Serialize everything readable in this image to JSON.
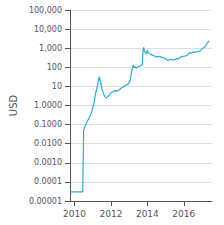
{
  "chart_data": {
    "type": "line",
    "ylabel": "USD",
    "log": "y",
    "grid": "y",
    "color": "#29abe2",
    "xlim": [
      2009.75,
      2017.55
    ],
    "xticks": [
      2010,
      2012,
      2014,
      2016
    ],
    "ylim": [
      1e-05,
      100000
    ],
    "yticks": [
      1e-05,
      0.0001,
      {
        "value": 0.001,
        "label": "0.0010"
      },
      {
        "value": 0.01,
        "label": "0.0100"
      },
      {
        "value": 0.1,
        "label": "0.1000"
      },
      {
        "value": 1.0,
        "label": "1.0000"
      },
      10,
      100,
      {
        "value": 1000,
        "label": "1,000"
      },
      {
        "value": 10000,
        "label": "10,000"
      },
      {
        "value": 100000,
        "label": "100,000"
      }
    ],
    "x": [
      2009.75,
      2009.9,
      2010.0,
      2010.45,
      2010.5,
      2010.55,
      2010.62,
      2010.7,
      2010.78,
      2010.85,
      2010.92,
      2011.0,
      2011.08,
      2011.15,
      2011.25,
      2011.35,
      2011.42,
      2011.5,
      2011.58,
      2011.65,
      2011.75,
      2011.85,
      2011.95,
      2012.05,
      2012.15,
      2012.25,
      2012.35,
      2012.45,
      2012.55,
      2012.65,
      2012.75,
      2012.85,
      2012.95,
      2013.05,
      2013.12,
      2013.18,
      2013.22,
      2013.28,
      2013.33,
      2013.38,
      2013.45,
      2013.52,
      2013.58,
      2013.65,
      2013.72,
      2013.77,
      2013.8,
      2013.83,
      2013.87,
      2013.92,
      2013.96,
      2014.0,
      2014.05,
      2014.12,
      2014.2,
      2014.3,
      2014.4,
      2014.5,
      2014.6,
      2014.7,
      2014.8,
      2014.9,
      2015.0,
      2015.1,
      2015.2,
      2015.3,
      2015.4,
      2015.5,
      2015.6,
      2015.7,
      2015.8,
      2015.9,
      2016.0,
      2016.1,
      2016.2,
      2016.3,
      2016.4,
      2016.5,
      2016.6,
      2016.7,
      2016.8,
      2016.9,
      2017.0,
      2017.1,
      2017.2,
      2017.3,
      2017.4
    ],
    "values": [
      3e-05,
      3e-05,
      3e-05,
      3e-05,
      0.05,
      0.07,
      0.1,
      0.15,
      0.2,
      0.28,
      0.4,
      0.75,
      1.5,
      4.0,
      10.0,
      32.0,
      18.0,
      8.0,
      4.5,
      3.0,
      2.5,
      3.0,
      4.0,
      5.0,
      5.5,
      6.0,
      5.8,
      6.5,
      8.0,
      9.0,
      10.5,
      12.0,
      13.5,
      20.0,
      50.0,
      90.0,
      130.0,
      95.0,
      110.0,
      90.0,
      100.0,
      110.0,
      115.0,
      120.0,
      140.0,
      900.0,
      1100.0,
      750.0,
      650.0,
      580.0,
      500.0,
      800.0,
      600.0,
      520.0,
      460.0,
      420.0,
      390.0,
      340.0,
      380.0,
      360.0,
      330.0,
      310.0,
      280.0,
      230.0,
      240.0,
      260.0,
      240.0,
      250.0,
      290.0,
      270.0,
      330.0,
      360.0,
      380.0,
      400.0,
      430.0,
      580.0,
      550.0,
      640.0,
      610.0,
      640.0,
      690.0,
      730.0,
      900.0,
      1100.0,
      1250.0,
      2000.0,
      2400.0
    ]
  }
}
